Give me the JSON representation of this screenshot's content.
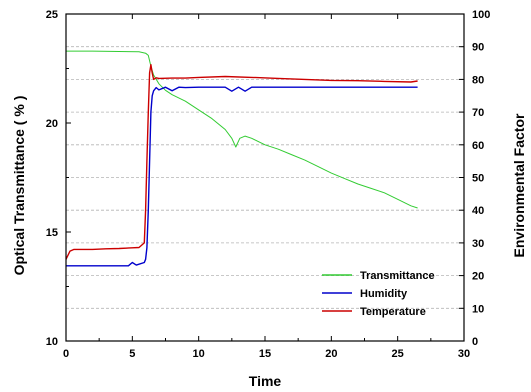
{
  "chart_data": {
    "type": "line",
    "xlabel": "Time",
    "ylabel_left": "Optical Transmittance ( % )",
    "ylabel_right": "Environmental Factor",
    "xlim": [
      0,
      30
    ],
    "ylim_left": [
      10,
      25
    ],
    "ylim_right": [
      0,
      100
    ],
    "x_ticks": [
      0,
      5,
      10,
      15,
      20,
      25,
      30
    ],
    "y_left_ticks": [
      10,
      15,
      20,
      25
    ],
    "y_right_ticks": [
      0,
      10,
      20,
      30,
      40,
      50,
      60,
      70,
      80,
      90,
      100
    ],
    "grid": "horizontal dashed",
    "legend_position": "bottom-right",
    "series": [
      {
        "name": "Transmittance",
        "axis": "left",
        "color": "#33cc33",
        "x": [
          0,
          2,
          4,
          5.5,
          6.0,
          6.2,
          6.4,
          6.6,
          7.0,
          7.5,
          8,
          9,
          10,
          11,
          12,
          12.5,
          12.8,
          13.1,
          13.5,
          14,
          15,
          16,
          17,
          18,
          19,
          20,
          21,
          22,
          23,
          24,
          25,
          26,
          26.5
        ],
        "values": [
          23.3,
          23.3,
          23.28,
          23.27,
          23.2,
          23.1,
          22.6,
          22.2,
          21.8,
          21.5,
          21.3,
          21.0,
          20.6,
          20.2,
          19.7,
          19.3,
          18.9,
          19.3,
          19.4,
          19.3,
          19.0,
          18.8,
          18.55,
          18.3,
          18.0,
          17.7,
          17.45,
          17.2,
          17.0,
          16.8,
          16.5,
          16.2,
          16.1
        ]
      },
      {
        "name": "Humidity",
        "axis": "right",
        "color": "#0000cc",
        "x": [
          0,
          2,
          4,
          4.7,
          5.0,
          5.3,
          5.9,
          6.0,
          6.1,
          6.2,
          6.3,
          6.4,
          6.5,
          6.6,
          6.8,
          7.0,
          7.5,
          8,
          8.5,
          9,
          10,
          11,
          12,
          12.5,
          13,
          13.5,
          14,
          15,
          16,
          17,
          18,
          20,
          22,
          24,
          25,
          26,
          26.5
        ],
        "values": [
          23.0,
          23.0,
          23.0,
          23.0,
          24.0,
          23.2,
          24.0,
          25.0,
          28.5,
          40.0,
          55.0,
          70.0,
          75.0,
          76.5,
          77.5,
          76.8,
          77.6,
          76.5,
          77.6,
          77.5,
          77.6,
          77.6,
          77.6,
          76.4,
          77.6,
          76.4,
          77.6,
          77.6,
          77.6,
          77.6,
          77.6,
          77.6,
          77.6,
          77.6,
          77.6,
          77.6,
          77.6
        ]
      },
      {
        "name": "Temperature",
        "axis": "right",
        "color": "#cc0000",
        "x": [
          0,
          0.3,
          0.6,
          1,
          2,
          3,
          4,
          5,
          5.5,
          5.9,
          6.0,
          6.1,
          6.2,
          6.3,
          6.4,
          6.5,
          6.6,
          6.8,
          7,
          8,
          9,
          10,
          12,
          14,
          16,
          18,
          20,
          22,
          24,
          26,
          26.5
        ],
        "values": [
          25.0,
          27.5,
          28.0,
          28.0,
          28.0,
          28.2,
          28.3,
          28.5,
          28.6,
          30.0,
          40.0,
          55.0,
          70.0,
          82.0,
          84.5,
          82.0,
          80.0,
          80.5,
          80.3,
          80.4,
          80.4,
          80.6,
          80.9,
          80.6,
          80.3,
          80.0,
          79.7,
          79.6,
          79.4,
          79.2,
          79.5
        ]
      }
    ]
  }
}
